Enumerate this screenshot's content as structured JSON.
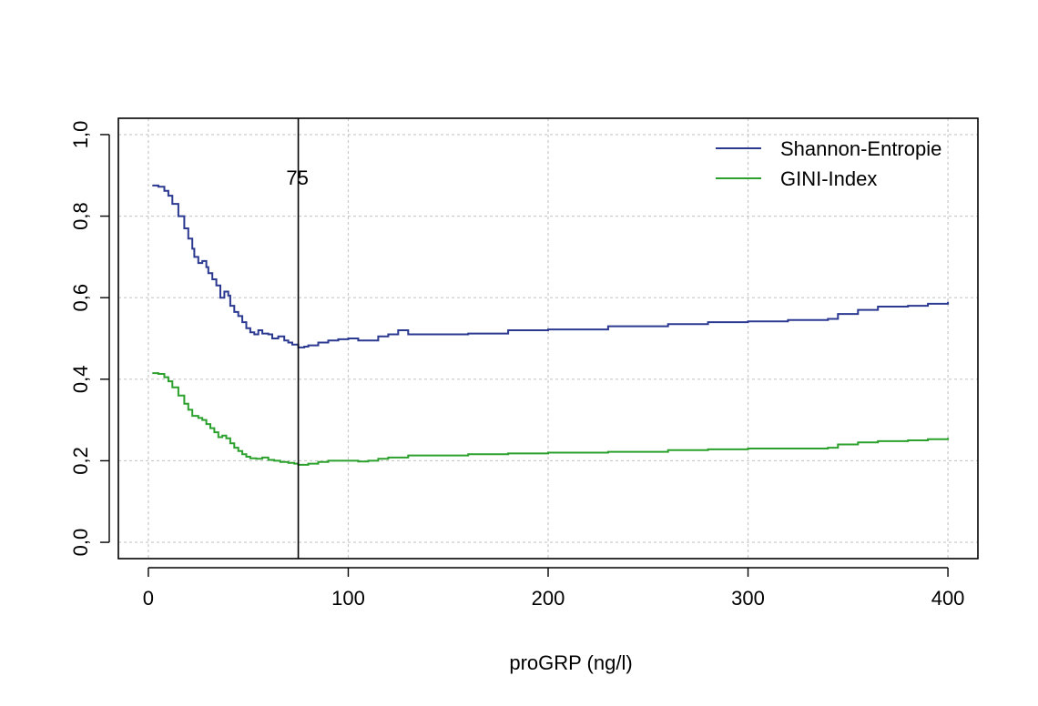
{
  "chart_data": {
    "type": "line",
    "xlabel": "proGRP (ng/l)",
    "ylabel": "",
    "xlim": [
      -15,
      415
    ],
    "ylim": [
      -0.04,
      1.04
    ],
    "x_ticks": [
      0,
      100,
      200,
      300,
      400
    ],
    "x_tick_labels": [
      "0",
      "100",
      "200",
      "300",
      "400"
    ],
    "y_ticks": [
      0.0,
      0.2,
      0.4,
      0.6,
      0.8,
      1.0
    ],
    "y_tick_labels": [
      "0,0",
      "0,2",
      "0,4",
      "0,6",
      "0,8",
      "1,0"
    ],
    "grid": true,
    "legend_position": "top-right",
    "vline": {
      "x": 75,
      "label": "75"
    },
    "series": [
      {
        "name": "Shannon-Entropie",
        "color": "#2b3990",
        "points": [
          [
            2,
            0.875
          ],
          [
            5,
            0.872
          ],
          [
            8,
            0.862
          ],
          [
            10,
            0.85
          ],
          [
            12,
            0.83
          ],
          [
            15,
            0.8
          ],
          [
            18,
            0.77
          ],
          [
            20,
            0.745
          ],
          [
            22,
            0.72
          ],
          [
            23,
            0.7
          ],
          [
            25,
            0.685
          ],
          [
            27,
            0.69
          ],
          [
            29,
            0.675
          ],
          [
            30,
            0.66
          ],
          [
            32,
            0.645
          ],
          [
            34,
            0.63
          ],
          [
            36,
            0.6
          ],
          [
            38,
            0.615
          ],
          [
            40,
            0.605
          ],
          [
            41,
            0.58
          ],
          [
            43,
            0.565
          ],
          [
            45,
            0.555
          ],
          [
            47,
            0.54
          ],
          [
            49,
            0.525
          ],
          [
            51,
            0.515
          ],
          [
            53,
            0.51
          ],
          [
            55,
            0.52
          ],
          [
            57,
            0.512
          ],
          [
            60,
            0.51
          ],
          [
            62,
            0.5
          ],
          [
            65,
            0.505
          ],
          [
            68,
            0.495
          ],
          [
            70,
            0.49
          ],
          [
            72,
            0.485
          ],
          [
            75,
            0.478
          ],
          [
            78,
            0.48
          ],
          [
            80,
            0.483
          ],
          [
            85,
            0.49
          ],
          [
            90,
            0.495
          ],
          [
            95,
            0.498
          ],
          [
            100,
            0.5
          ],
          [
            105,
            0.495
          ],
          [
            110,
            0.495
          ],
          [
            115,
            0.505
          ],
          [
            120,
            0.51
          ],
          [
            125,
            0.52
          ],
          [
            130,
            0.51
          ],
          [
            140,
            0.51
          ],
          [
            160,
            0.512
          ],
          [
            180,
            0.52
          ],
          [
            200,
            0.522
          ],
          [
            230,
            0.53
          ],
          [
            260,
            0.535
          ],
          [
            280,
            0.54
          ],
          [
            300,
            0.542
          ],
          [
            320,
            0.545
          ],
          [
            340,
            0.548
          ],
          [
            345,
            0.56
          ],
          [
            355,
            0.57
          ],
          [
            365,
            0.578
          ],
          [
            380,
            0.58
          ],
          [
            390,
            0.585
          ],
          [
            400,
            0.59
          ]
        ]
      },
      {
        "name": "GINI-Index",
        "color": "#2ca02c",
        "points": [
          [
            2,
            0.415
          ],
          [
            5,
            0.413
          ],
          [
            8,
            0.405
          ],
          [
            10,
            0.395
          ],
          [
            12,
            0.38
          ],
          [
            15,
            0.36
          ],
          [
            18,
            0.34
          ],
          [
            20,
            0.325
          ],
          [
            22,
            0.31
          ],
          [
            25,
            0.305
          ],
          [
            27,
            0.3
          ],
          [
            29,
            0.29
          ],
          [
            31,
            0.28
          ],
          [
            33,
            0.27
          ],
          [
            35,
            0.258
          ],
          [
            37,
            0.262
          ],
          [
            39,
            0.255
          ],
          [
            41,
            0.243
          ],
          [
            43,
            0.232
          ],
          [
            45,
            0.224
          ],
          [
            47,
            0.216
          ],
          [
            49,
            0.21
          ],
          [
            51,
            0.206
          ],
          [
            54,
            0.205
          ],
          [
            57,
            0.208
          ],
          [
            60,
            0.202
          ],
          [
            63,
            0.2
          ],
          [
            66,
            0.197
          ],
          [
            70,
            0.195
          ],
          [
            73,
            0.193
          ],
          [
            75,
            0.19
          ],
          [
            80,
            0.193
          ],
          [
            85,
            0.197
          ],
          [
            90,
            0.2
          ],
          [
            100,
            0.2
          ],
          [
            105,
            0.198
          ],
          [
            110,
            0.2
          ],
          [
            115,
            0.205
          ],
          [
            120,
            0.208
          ],
          [
            130,
            0.213
          ],
          [
            140,
            0.213
          ],
          [
            160,
            0.216
          ],
          [
            180,
            0.218
          ],
          [
            200,
            0.22
          ],
          [
            230,
            0.222
          ],
          [
            260,
            0.226
          ],
          [
            280,
            0.228
          ],
          [
            300,
            0.23
          ],
          [
            320,
            0.23
          ],
          [
            340,
            0.232
          ],
          [
            345,
            0.24
          ],
          [
            355,
            0.245
          ],
          [
            365,
            0.248
          ],
          [
            380,
            0.25
          ],
          [
            390,
            0.253
          ],
          [
            400,
            0.256
          ]
        ]
      }
    ]
  }
}
